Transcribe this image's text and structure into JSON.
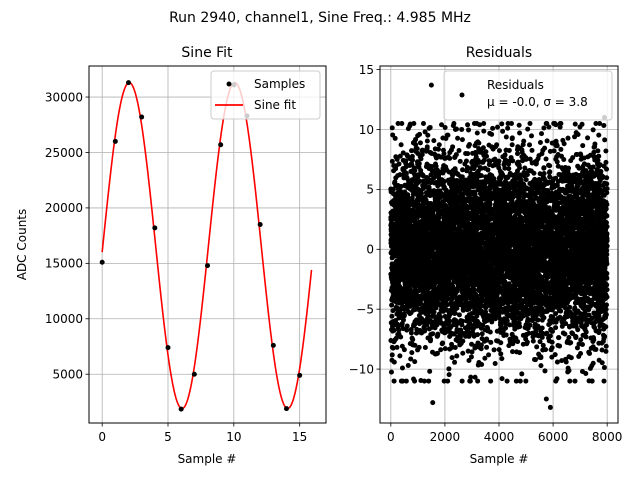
{
  "figure": {
    "suptitle": "Run 2940, channel1, Sine Freq.: 4.985 MHz"
  },
  "chart_data": [
    {
      "type": "scatter",
      "title": "Sine Fit",
      "xlabel": "Sample #",
      "ylabel": "ADC Counts",
      "xlim": [
        -1,
        17
      ],
      "ylim": [
        600,
        32800
      ],
      "xticks": [
        0,
        5,
        10,
        15
      ],
      "yticks": [
        5000,
        10000,
        15000,
        20000,
        25000,
        30000
      ],
      "grid": true,
      "legend": {
        "position": "upper right",
        "entries": [
          "Samples",
          "Sine fit"
        ]
      },
      "colors": {
        "samples": "#000000",
        "fit": "#ff0000",
        "grid": "#b0b0b0"
      },
      "series": [
        {
          "name": "Samples",
          "kind": "scatter",
          "x": [
            0,
            1,
            2,
            3,
            4,
            5,
            6,
            7,
            8,
            9,
            10,
            11,
            12,
            13,
            14,
            15
          ],
          "y": [
            15100,
            26000,
            31300,
            28200,
            18200,
            7400,
            1850,
            5000,
            14800,
            25700,
            31100,
            28300,
            18500,
            7600,
            1900,
            4900
          ]
        },
        {
          "name": "Sine fit",
          "kind": "line",
          "model": {
            "offset": 16600,
            "amplitude": 14700,
            "samples_per_period": 8.02,
            "phase_rad": -0.04
          },
          "x_range": [
            0,
            15.9
          ]
        }
      ]
    },
    {
      "type": "scatter",
      "title": "Residuals",
      "xlabel": "Sample #",
      "ylabel": "",
      "xlim": [
        -400,
        8400
      ],
      "ylim": [
        -14.5,
        15.3
      ],
      "xticks": [
        0,
        2000,
        4000,
        6000,
        8000
      ],
      "yticks": [
        -10,
        -5,
        0,
        5,
        10,
        15
      ],
      "grid": true,
      "legend": {
        "position": "upper right",
        "entries": [
          "Residuals",
          "μ = -0.0, σ = 3.8"
        ]
      },
      "colors": {
        "points": "#000000",
        "grid": "#b0b0b0"
      },
      "series": [
        {
          "name": "Residuals",
          "kind": "scatter",
          "n_points": 8000,
          "x_range": [
            0,
            8000
          ],
          "mean": 0.0,
          "std": 3.8,
          "notable_points": [
            {
              "x": 1500,
              "y": 13.7
            },
            {
              "x": 7900,
              "y": 11.0
            },
            {
              "x": 1550,
              "y": -12.8
            },
            {
              "x": 5900,
              "y": -13.2
            },
            {
              "x": 5750,
              "y": -12.5
            },
            {
              "x": 700,
              "y": 10.3
            },
            {
              "x": 6100,
              "y": 10.4
            }
          ]
        }
      ],
      "stats": {
        "mu": -0.0,
        "sigma": 3.8
      }
    }
  ]
}
